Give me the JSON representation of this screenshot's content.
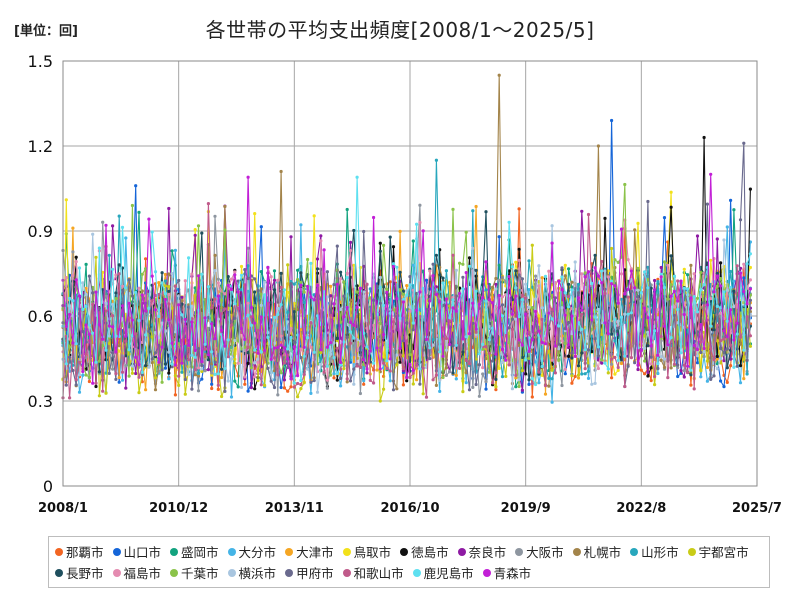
{
  "unit_label": "[単位：回]",
  "chart_data": {
    "type": "line",
    "title": "各世帯の平均支出頻度[2008/1～2025/5]",
    "xlabel": "",
    "ylabel": "",
    "ylim": [
      0,
      1.5
    ],
    "yticks": [
      "0",
      "0.3",
      "0.6",
      "0.9",
      "1.2",
      "1.5"
    ],
    "x_start": "2008/1",
    "x_end": "2025/7",
    "xticks": [
      "2008/1",
      "2010/12",
      "2013/11",
      "2016/10",
      "2019/9",
      "2022/8",
      "2025/7"
    ],
    "grid": true,
    "legend_position": "bottom",
    "series": [
      {
        "name": "那覇市",
        "color": "#f26522"
      },
      {
        "name": "山口市",
        "color": "#1565d8"
      },
      {
        "name": "盛岡市",
        "color": "#13a37f"
      },
      {
        "name": "大分市",
        "color": "#45b4e6"
      },
      {
        "name": "大津市",
        "color": "#f5a623"
      },
      {
        "name": "鳥取市",
        "color": "#f2e11b"
      },
      {
        "name": "徳島市",
        "color": "#111111"
      },
      {
        "name": "奈良市",
        "color": "#8e1aa3"
      },
      {
        "name": "大阪市",
        "color": "#8e96a0"
      },
      {
        "name": "札幌市",
        "color": "#a3844a"
      },
      {
        "name": "山形市",
        "color": "#28a7bd"
      },
      {
        "name": "宇都宮市",
        "color": "#c9cc17"
      },
      {
        "name": "長野市",
        "color": "#1f4f5e"
      },
      {
        "name": "福島市",
        "color": "#e48bb0"
      },
      {
        "name": "千葉市",
        "color": "#8bc34a"
      },
      {
        "name": "横浜市",
        "color": "#a9c6e0"
      },
      {
        "name": "甲府市",
        "color": "#6a6a8e"
      },
      {
        "name": "和歌山市",
        "color": "#c05a8a"
      },
      {
        "name": "鹿児島市",
        "color": "#5ee0f0"
      },
      {
        "name": "青森市",
        "color": "#c21fd6"
      }
    ],
    "peaks": [
      {
        "series": "札幌市",
        "x": "2019/1",
        "y": 1.45
      },
      {
        "series": "山口市",
        "x": "2021/11",
        "y": 1.29
      },
      {
        "series": "徳島市",
        "x": "2024/3",
        "y": 1.23
      },
      {
        "series": "甲府市",
        "x": "2025/3",
        "y": 1.21
      },
      {
        "series": "札幌市",
        "x": "2021/7",
        "y": 1.2
      },
      {
        "series": "山形市",
        "x": "2017/6",
        "y": 1.15
      },
      {
        "series": "青森市",
        "x": "2024/5",
        "y": 1.1
      },
      {
        "series": "札幌市",
        "x": "2013/7",
        "y": 1.11
      },
      {
        "series": "鹿児島市",
        "x": "2015/6",
        "y": 1.09
      },
      {
        "series": "青森市",
        "x": "2012/9",
        "y": 1.09
      },
      {
        "series": "鳥取市",
        "x": "2008/2",
        "y": 1.01
      },
      {
        "series": "山口市",
        "x": "2009/11",
        "y": 1.06
      }
    ]
  }
}
